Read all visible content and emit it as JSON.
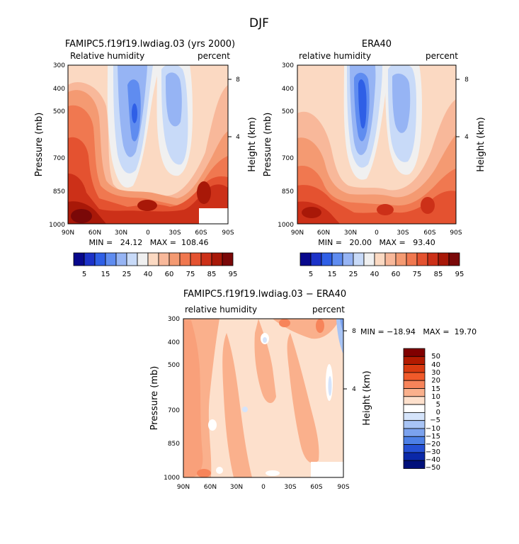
{
  "main_title": "DJF",
  "colors": {
    "abs_levels": [
      "5",
      "15",
      "25",
      "40",
      "60",
      "75",
      "85",
      "95"
    ],
    "abs_palette": [
      "#08088c",
      "#1c32c8",
      "#2f5fe6",
      "#5f8cf0",
      "#96b4f4",
      "#c8daf8",
      "#f0f0f0",
      "#fbd9c2",
      "#f8b89a",
      "#f49a72",
      "#f07850",
      "#e45230",
      "#cc3018",
      "#a81808",
      "#7a0808"
    ],
    "diff_levels": [
      "50",
      "40",
      "30",
      "20",
      "15",
      "10",
      "5",
      "0",
      "-5",
      "-10",
      "-15",
      "-20",
      "-30",
      "-40",
      "-50"
    ],
    "diff_palette": [
      "#800000",
      "#b21a00",
      "#d93a10",
      "#f05a2a",
      "#f7845a",
      "#fab08c",
      "#fde0cc",
      "#ffffff",
      "#d5e4fb",
      "#a8c4f5",
      "#7ba2ee",
      "#4d80e6",
      "#2550d4",
      "#0a28a8",
      "#00107a"
    ]
  },
  "chart_data": [
    {
      "type": "heatmap",
      "title": "FAMIPC5.f19f19.lwdiag.03 (yrs 2000)",
      "left_label": "Relative humidity",
      "right_label": "percent",
      "ylabel": "Pressure (mb)",
      "ylabel_right": "Height (km)",
      "x_ticks": [
        "90N",
        "60N",
        "30N",
        "0",
        "30S",
        "60S",
        "90S"
      ],
      "y_ticks": [
        "300",
        "400",
        "500",
        "700",
        "850",
        "1000"
      ],
      "y_ticks_right": [
        "8",
        "4"
      ],
      "min_max": "MIN =   24.12   MAX =  108.46",
      "colorbar_labels": [
        "5",
        "15",
        "25",
        "40",
        "60",
        "75",
        "85",
        "95"
      ]
    },
    {
      "type": "heatmap",
      "title": "ERA40",
      "left_label": "relative humidity",
      "right_label": "percent",
      "ylabel": "Pressure (mb)",
      "ylabel_right": "Height (km)",
      "x_ticks": [
        "90N",
        "60N",
        "30N",
        "0",
        "30S",
        "60S",
        "90S"
      ],
      "y_ticks": [
        "300",
        "400",
        "500",
        "700",
        "850",
        "1000"
      ],
      "y_ticks_right": [
        "8",
        "4"
      ],
      "min_max": "MIN =   20.00   MAX =   93.40",
      "colorbar_labels": [
        "5",
        "15",
        "25",
        "40",
        "60",
        "75",
        "85",
        "95"
      ]
    },
    {
      "type": "heatmap",
      "title": "FAMIPC5.f19f19.lwdiag.03 − ERA40",
      "left_label": "relative humidity",
      "right_label": "percent",
      "ylabel": "Pressure (mb)",
      "ylabel_right": "Height (km)",
      "x_ticks": [
        "90N",
        "60N",
        "30N",
        "0",
        "30S",
        "60S",
        "90S"
      ],
      "y_ticks": [
        "300",
        "400",
        "500",
        "700",
        "850",
        "1000"
      ],
      "y_ticks_right": [
        "8",
        "4"
      ],
      "min_max": "MIN = −18.94   MAX =  19.70",
      "colorbar_labels": [
        "50",
        "40",
        "30",
        "20",
        "15",
        "10",
        "5",
        "0",
        "−5",
        "−10",
        "−15",
        "−20",
        "−30",
        "−40",
        "−50"
      ]
    }
  ]
}
